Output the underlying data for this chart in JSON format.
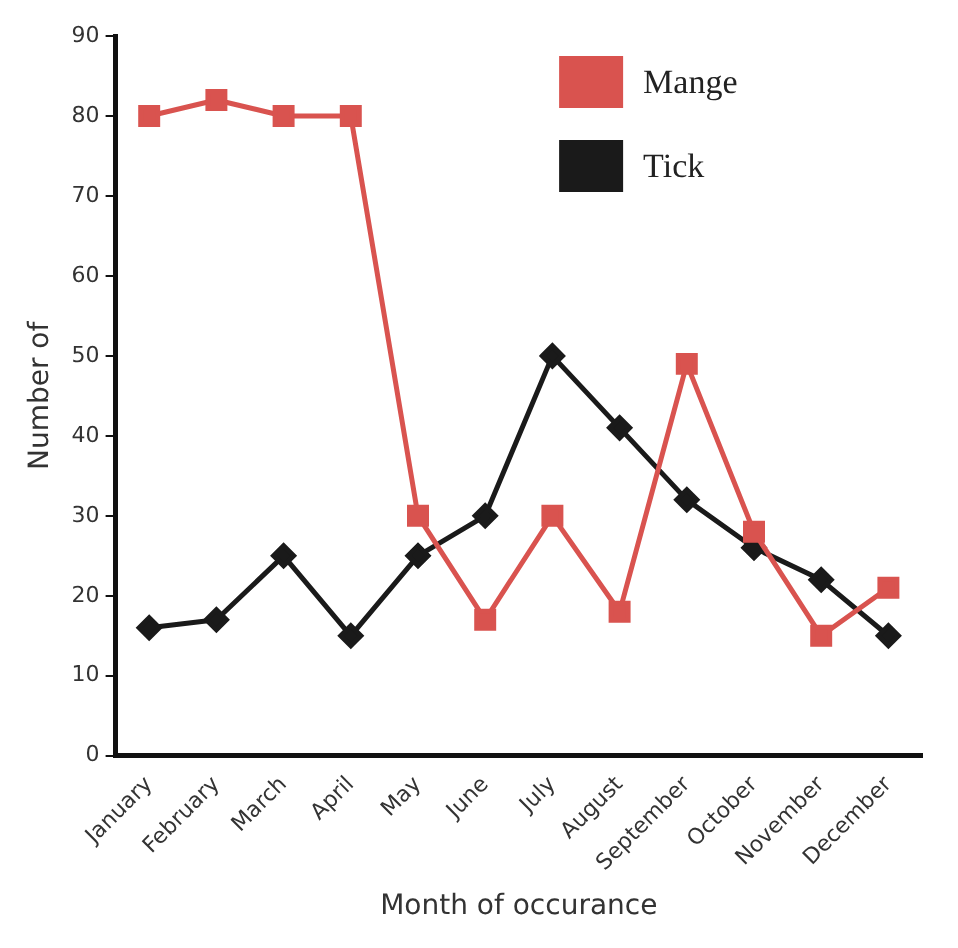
{
  "chart_data": {
    "type": "line",
    "xlabel": "Month of occurance",
    "ylabel": "Number of",
    "categories": [
      "January",
      "February",
      "March",
      "April",
      "May",
      "June",
      "July",
      "August",
      "September",
      "October",
      "November",
      "December"
    ],
    "series": [
      {
        "name": "Mange",
        "color": "#d9534f",
        "marker": "square",
        "values": [
          80,
          82,
          80,
          80,
          30,
          17,
          30,
          18,
          49,
          28,
          15,
          21
        ]
      },
      {
        "name": "Tick",
        "color": "#1a1a1a",
        "marker": "diamond",
        "values": [
          16,
          17,
          25,
          15,
          25,
          30,
          50,
          41,
          32,
          26,
          22,
          15
        ]
      }
    ],
    "ylim": [
      0,
      90
    ],
    "yticks": [
      0,
      10,
      20,
      30,
      40,
      50,
      60,
      70,
      80,
      90
    ],
    "grid": false,
    "legend": "top right",
    "line_style": "solid"
  }
}
